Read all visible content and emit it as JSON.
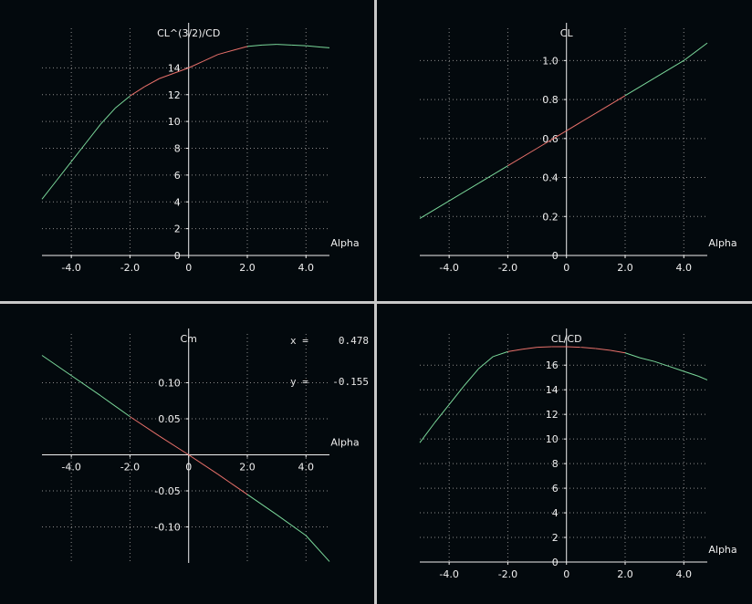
{
  "readout": {
    "x_label": "x =",
    "x_value": "0.478",
    "y_label": "y =",
    "y_value": "-0.155"
  },
  "colors": {
    "background": "#03090d",
    "axis": "#f0f0f0",
    "grid": "#8a8a8a",
    "curve_outer": "#7ad89a",
    "curve_inner": "#e8706a",
    "separator": "#c8c8c8"
  },
  "chart_data": [
    {
      "type": "line",
      "title": "CL^(3/2)/CD",
      "xlabel": "Alpha",
      "ylabel": "CL^(3/2)/CD",
      "xlim": [
        -5.0,
        4.8
      ],
      "ylim": [
        0,
        16
      ],
      "xticks": [
        -4.0,
        -2.0,
        0,
        2.0,
        4.0
      ],
      "xtick_labels": [
        "-4.0",
        "-2.0",
        "0",
        "2.0",
        "4.0"
      ],
      "yticks": [
        0,
        2,
        4,
        6,
        8,
        10,
        12,
        14
      ],
      "ytick_labels": [
        "0",
        "2",
        "4",
        "6",
        "8",
        "10",
        "12",
        "14"
      ],
      "grid": true,
      "highlight_x_range": [
        -2.0,
        2.0
      ],
      "x": [
        -5.0,
        -4.5,
        -4.0,
        -3.5,
        -3.0,
        -2.5,
        -2.0,
        -1.5,
        -1.0,
        -0.5,
        0.0,
        0.5,
        1.0,
        1.5,
        2.0,
        2.5,
        3.0,
        3.5,
        4.0,
        4.5,
        4.8
      ],
      "y": [
        4.2,
        5.6,
        7.0,
        8.4,
        9.8,
        11.0,
        11.9,
        12.6,
        13.2,
        13.6,
        14.0,
        14.5,
        15.0,
        15.3,
        15.6,
        15.7,
        15.75,
        15.7,
        15.65,
        15.55,
        15.5
      ]
    },
    {
      "type": "line",
      "title": "CL",
      "xlabel": "Alpha",
      "ylabel": "CL",
      "xlim": [
        -5.0,
        4.8
      ],
      "ylim": [
        0,
        1.1
      ],
      "xticks": [
        -4.0,
        -2.0,
        0,
        2.0,
        4.0
      ],
      "xtick_labels": [
        "-4.0",
        "-2.0",
        "0",
        "2.0",
        "4.0"
      ],
      "yticks": [
        0,
        0.2,
        0.4,
        0.6,
        0.8,
        1.0
      ],
      "ytick_labels": [
        "0",
        "0.2",
        "0.4",
        "0.6",
        "0.8",
        "1.0"
      ],
      "grid": true,
      "highlight_x_range": [
        -2.0,
        2.0
      ],
      "x": [
        -5.0,
        -4.0,
        -3.0,
        -2.0,
        -1.0,
        0.0,
        1.0,
        2.0,
        3.0,
        4.0,
        4.8
      ],
      "y": [
        0.19,
        0.28,
        0.37,
        0.46,
        0.55,
        0.64,
        0.73,
        0.82,
        0.91,
        1.0,
        1.09
      ]
    },
    {
      "type": "line",
      "title": "Cm",
      "xlabel": "Alpha",
      "ylabel": "Cm",
      "xlim": [
        -5.0,
        4.8
      ],
      "ylim": [
        -0.15,
        0.15
      ],
      "xticks": [
        -4.0,
        -2.0,
        0,
        2.0,
        4.0
      ],
      "xtick_labels": [
        "-4.0",
        "-2.0",
        "0",
        "2.0",
        "4.0"
      ],
      "yticks": [
        -0.1,
        -0.05,
        0.05,
        0.1
      ],
      "ytick_labels": [
        "-0.10",
        "-0.05",
        "0.05",
        "0.10"
      ],
      "grid": true,
      "highlight_x_range": [
        -2.0,
        2.0
      ],
      "x": [
        -5.0,
        -4.0,
        -3.0,
        -2.0,
        -1.0,
        0.0,
        1.0,
        2.0,
        3.0,
        4.0,
        4.8
      ],
      "y": [
        0.138,
        0.11,
        0.082,
        0.053,
        0.026,
        0.0,
        -0.027,
        -0.055,
        -0.083,
        -0.112,
        -0.148
      ]
    },
    {
      "type": "line",
      "title": "CL/CD",
      "xlabel": "Alpha",
      "ylabel": "CL/CD",
      "xlim": [
        -5.0,
        4.8
      ],
      "ylim": [
        0,
        17.5
      ],
      "xticks": [
        -4.0,
        -2.0,
        0,
        2.0,
        4.0
      ],
      "xtick_labels": [
        "-4.0",
        "-2.0",
        "0",
        "2.0",
        "4.0"
      ],
      "yticks": [
        0,
        2,
        4,
        6,
        8,
        10,
        12,
        14,
        16
      ],
      "ytick_labels": [
        "0",
        "2",
        "4",
        "6",
        "8",
        "10",
        "12",
        "14",
        "16"
      ],
      "grid": true,
      "highlight_x_range": [
        -2.0,
        2.0
      ],
      "x": [
        -5.0,
        -4.5,
        -4.0,
        -3.5,
        -3.0,
        -2.5,
        -2.0,
        -1.5,
        -1.0,
        -0.5,
        0.0,
        0.5,
        1.0,
        1.5,
        2.0,
        2.5,
        3.0,
        3.5,
        4.0,
        4.5,
        4.8
      ],
      "y": [
        9.7,
        11.3,
        12.8,
        14.3,
        15.7,
        16.7,
        17.1,
        17.3,
        17.45,
        17.5,
        17.5,
        17.45,
        17.35,
        17.2,
        17.0,
        16.6,
        16.3,
        15.9,
        15.5,
        15.1,
        14.8
      ]
    }
  ]
}
